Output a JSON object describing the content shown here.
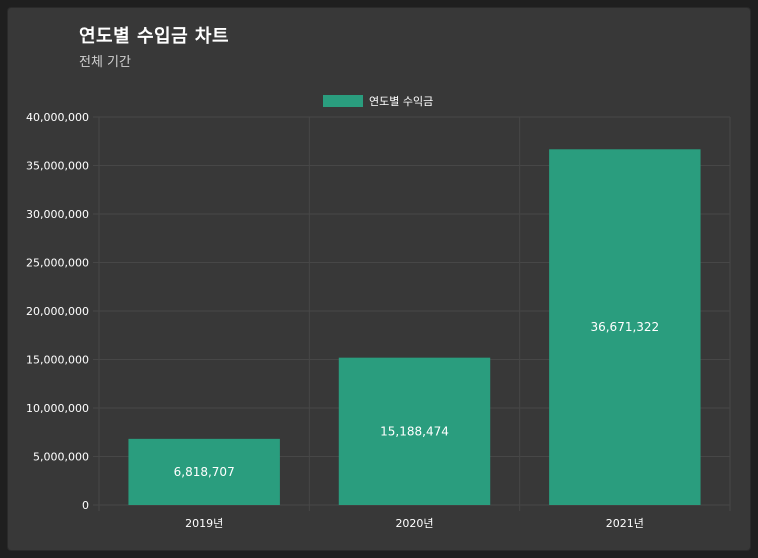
{
  "header": {
    "title": "연도별 수입금 차트",
    "subtitle": "전체 기간"
  },
  "colors": {
    "bar": "#2a9d7e",
    "grid": "#474747",
    "background": "#383838"
  },
  "chart_data": {
    "type": "bar",
    "categories": [
      "2019년",
      "2020년",
      "2021년"
    ],
    "series": [
      {
        "name": "연도별 수익금",
        "values": [
          6818707,
          15188474,
          36671322
        ]
      }
    ],
    "data_labels": [
      "6,818,707",
      "15,188,474",
      "36,671,322"
    ],
    "yticks": [
      "0",
      "5,000,000",
      "10,000,000",
      "15,000,000",
      "20,000,000",
      "25,000,000",
      "30,000,000",
      "35,000,000",
      "40,000,000"
    ],
    "ylim": [
      0,
      40000000
    ],
    "grid": true,
    "legend": "top-center"
  }
}
